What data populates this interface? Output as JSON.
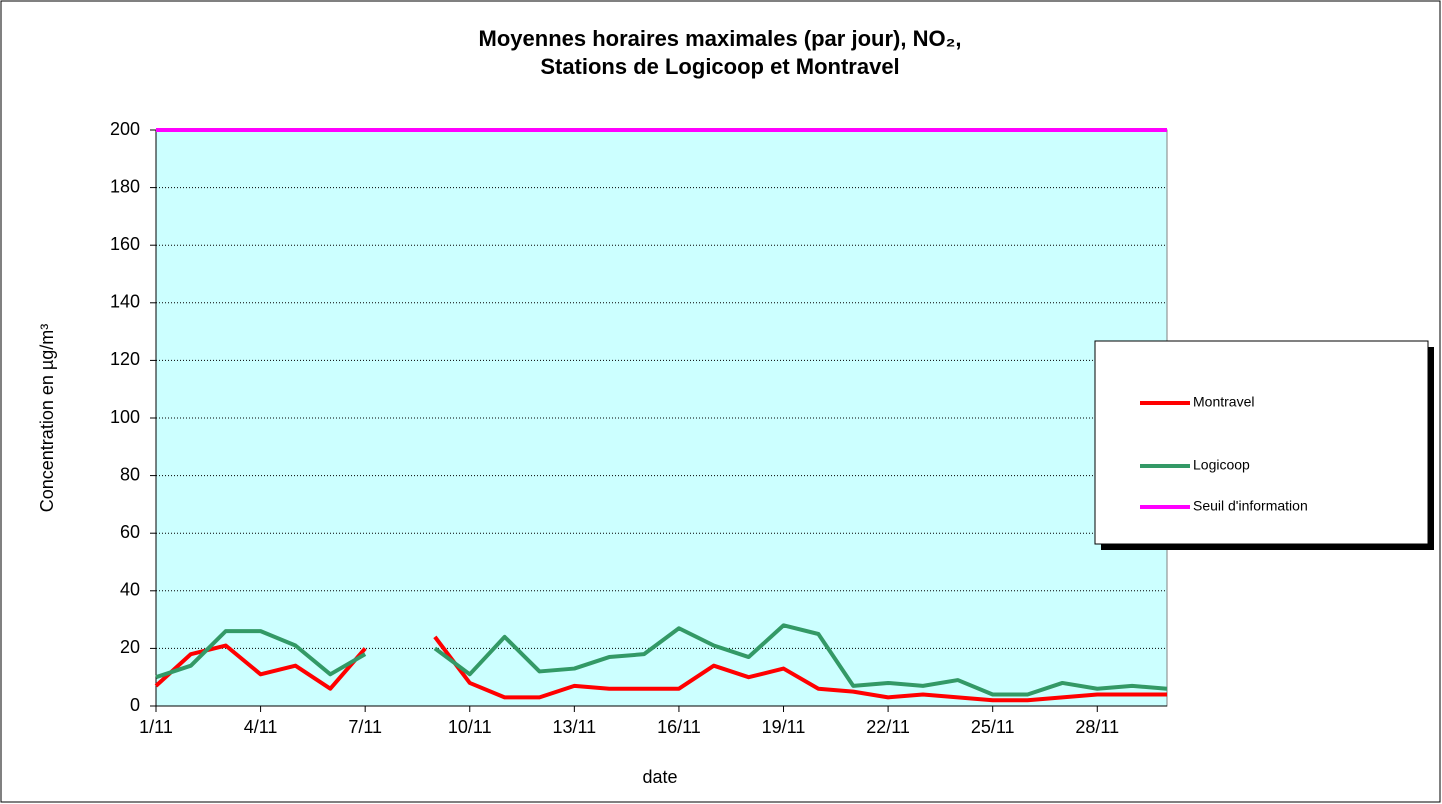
{
  "chart_data": {
    "type": "line",
    "title": [
      "Moyennes horaires maximales (par jour), NO₂,",
      "Stations de Logicoop et Montravel"
    ],
    "xlabel": "date",
    "ylabel": "Concentration en µg/m³",
    "categories": [
      "1/11",
      null,
      null,
      "4/11",
      null,
      null,
      "7/11",
      null,
      null,
      "10/11",
      null,
      null,
      "13/11",
      null,
      null,
      "16/11",
      null,
      null,
      "19/11",
      null,
      null,
      "22/11",
      null,
      null,
      "25/11",
      null,
      null,
      "28/11",
      null,
      null
    ],
    "series": [
      {
        "name": "Montravel",
        "color": "#ff0000",
        "values": [
          7,
          18,
          21,
          11,
          14,
          6,
          20,
          null,
          24,
          8,
          3,
          3,
          7,
          6,
          6,
          6,
          14,
          10,
          13,
          6,
          5,
          3,
          4,
          3,
          2,
          2,
          3,
          4,
          4,
          4
        ]
      },
      {
        "name": "Logicoop",
        "color": "#339966",
        "values": [
          10,
          14,
          26,
          26,
          21,
          11,
          18,
          null,
          20,
          11,
          24,
          12,
          13,
          17,
          18,
          27,
          21,
          17,
          28,
          25,
          7,
          8,
          7,
          9,
          4,
          4,
          8,
          6,
          7,
          6
        ]
      },
      {
        "name": "Seuil d'information",
        "color": "#ff00ff",
        "values": [
          200,
          200,
          200,
          200,
          200,
          200,
          200,
          200,
          200,
          200,
          200,
          200,
          200,
          200,
          200,
          200,
          200,
          200,
          200,
          200,
          200,
          200,
          200,
          200,
          200,
          200,
          200,
          200,
          200,
          200
        ]
      }
    ],
    "ylim": [
      0,
      200
    ],
    "yticks": [
      0,
      20,
      40,
      60,
      80,
      100,
      120,
      140,
      160,
      180,
      200
    ],
    "grid": true,
    "legend": "right",
    "background": "#ccffff"
  }
}
